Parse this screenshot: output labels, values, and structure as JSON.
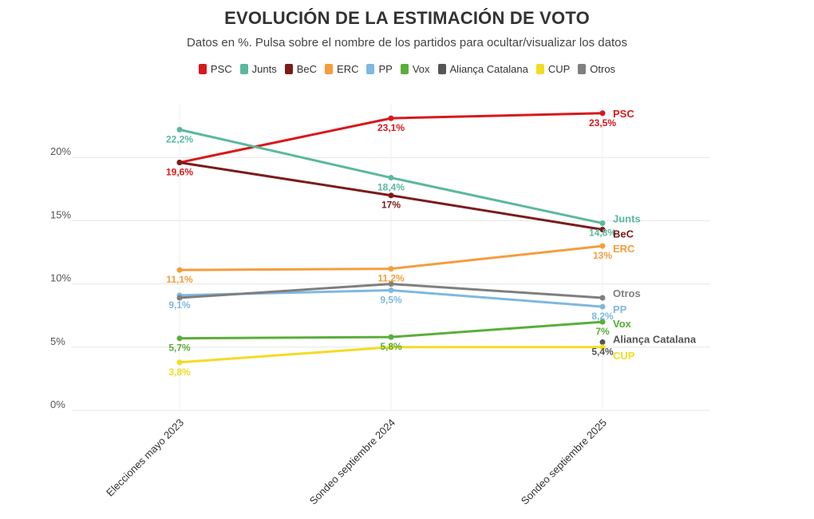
{
  "title": "EVOLUCIÓN DE LA ESTIMACIÓN DE VOTO",
  "subtitle": "Datos en %. Pulsa sobre el nombre de los partidos para ocultar/visualizar los datos",
  "chart_data": {
    "type": "line",
    "title": "EVOLUCIÓN DE LA ESTIMACIÓN DE VOTO",
    "subtitle": "Datos en %. Pulsa sobre el nombre de los partidos para ocultar/visualizar los datos",
    "categories": [
      "Elecciones mayo 2023",
      "Sondeo septiembre 2024",
      "Sondeo septiembre 2025"
    ],
    "ylim": [
      0,
      25
    ],
    "yticks": [
      0,
      5,
      10,
      15,
      20
    ],
    "ytick_labels": [
      "0%",
      "5%",
      "10%",
      "15%",
      "20%"
    ],
    "grid": true,
    "legend_position": "top-center",
    "series": [
      {
        "name": "PSC",
        "color": "#d7191c",
        "values": [
          19.6,
          23.1,
          23.5
        ],
        "labels": [
          "19,6%",
          "23,1%",
          "23,5%"
        ]
      },
      {
        "name": "Junts",
        "color": "#5bb89e",
        "values": [
          22.2,
          18.4,
          14.8
        ],
        "labels": [
          "22,2%",
          "18,4%",
          "14,8%"
        ]
      },
      {
        "name": "BeC",
        "color": "#7b1c1c",
        "values": [
          19.6,
          17.0,
          14.3
        ],
        "labels": [
          "",
          "17%",
          ""
        ]
      },
      {
        "name": "ERC",
        "color": "#f59d3d",
        "values": [
          11.1,
          11.2,
          13.0
        ],
        "labels": [
          "11,1%",
          "11,2%",
          "13%"
        ]
      },
      {
        "name": "PP",
        "color": "#7fb8e0",
        "values": [
          9.1,
          9.5,
          8.2
        ],
        "labels": [
          "9,1%",
          "9,5%",
          "8,2%"
        ]
      },
      {
        "name": "Vox",
        "color": "#5aae3a",
        "values": [
          5.7,
          5.8,
          7.0
        ],
        "labels": [
          "5,7%",
          "5,8%",
          "7%"
        ]
      },
      {
        "name": "Aliança Catalana",
        "color": "#555555",
        "values": [
          null,
          null,
          5.4
        ],
        "labels": [
          "",
          "",
          "5,4%"
        ]
      },
      {
        "name": "CUP",
        "color": "#f2dc23",
        "values": [
          3.8,
          5.0,
          5.0
        ],
        "labels": [
          "3,8%",
          "",
          ""
        ]
      },
      {
        "name": "Otros",
        "color": "#7f7f7f",
        "values": [
          8.9,
          10.0,
          8.9
        ],
        "labels": [
          "",
          "",
          ""
        ]
      }
    ]
  }
}
